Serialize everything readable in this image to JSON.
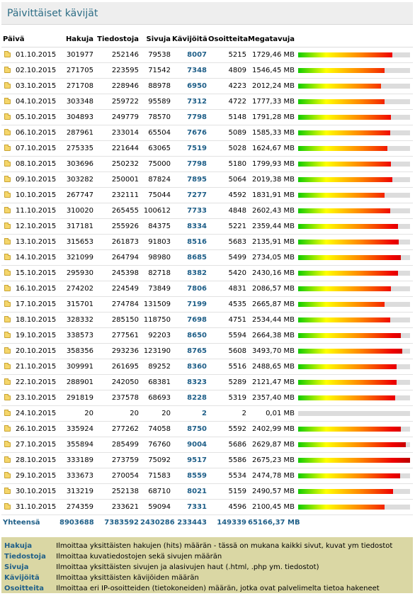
{
  "title": "Päivittäiset kävijät",
  "columns": [
    "Päivä",
    "Hakuja",
    "Tiedostoja",
    "Sivuja",
    "Kävijöitä",
    "Osoitteita",
    "Megatavuja"
  ],
  "bar_max_megatavuja": 3493.7,
  "rows": [
    {
      "date": "01.10.2015",
      "hakuja": "301977",
      "tiedostoja": "252146",
      "sivuja": "79538",
      "kavijoita": "8007",
      "osoitteita": "5215",
      "mb": "1729,46 MB",
      "fill": 0.84
    },
    {
      "date": "02.10.2015",
      "hakuja": "271705",
      "tiedostoja": "223595",
      "sivuja": "71542",
      "kavijoita": "7348",
      "osoitteita": "4809",
      "mb": "1546,45 MB",
      "fill": 0.77
    },
    {
      "date": "03.10.2015",
      "hakuja": "271708",
      "tiedostoja": "228946",
      "sivuja": "88978",
      "kavijoita": "6950",
      "osoitteita": "4223",
      "mb": "2012,24 MB",
      "fill": 0.74
    },
    {
      "date": "04.10.2015",
      "hakuja": "303348",
      "tiedostoja": "259722",
      "sivuja": "95589",
      "kavijoita": "7312",
      "osoitteita": "4722",
      "mb": "1777,33 MB",
      "fill": 0.77
    },
    {
      "date": "05.10.2015",
      "hakuja": "304893",
      "tiedostoja": "249779",
      "sivuja": "78570",
      "kavijoita": "7798",
      "osoitteita": "5148",
      "mb": "1791,28 MB",
      "fill": 0.83
    },
    {
      "date": "06.10.2015",
      "hakuja": "287961",
      "tiedostoja": "233014",
      "sivuja": "65504",
      "kavijoita": "7676",
      "osoitteita": "5089",
      "mb": "1585,33 MB",
      "fill": 0.82
    },
    {
      "date": "07.10.2015",
      "hakuja": "275335",
      "tiedostoja": "221644",
      "sivuja": "63065",
      "kavijoita": "7519",
      "osoitteita": "5028",
      "mb": "1624,67 MB",
      "fill": 0.8
    },
    {
      "date": "08.10.2015",
      "hakuja": "303696",
      "tiedostoja": "250232",
      "sivuja": "75000",
      "kavijoita": "7798",
      "osoitteita": "5180",
      "mb": "1799,93 MB",
      "fill": 0.83
    },
    {
      "date": "09.10.2015",
      "hakuja": "303282",
      "tiedostoja": "250001",
      "sivuja": "87824",
      "kavijoita": "7895",
      "osoitteita": "5064",
      "mb": "2019,38 MB",
      "fill": 0.84
    },
    {
      "date": "10.10.2015",
      "hakuja": "267747",
      "tiedostoja": "232111",
      "sivuja": "75044",
      "kavijoita": "7277",
      "osoitteita": "4592",
      "mb": "1831,91 MB",
      "fill": 0.77
    },
    {
      "date": "11.10.2015",
      "hakuja": "310020",
      "tiedostoja": "265455",
      "sivuja": "100612",
      "kavijoita": "7733",
      "osoitteita": "4848",
      "mb": "2602,43 MB",
      "fill": 0.82
    },
    {
      "date": "12.10.2015",
      "hakuja": "317181",
      "tiedostoja": "255926",
      "sivuja": "84375",
      "kavijoita": "8334",
      "osoitteita": "5221",
      "mb": "2359,44 MB",
      "fill": 0.89
    },
    {
      "date": "13.10.2015",
      "hakuja": "315653",
      "tiedostoja": "261873",
      "sivuja": "91803",
      "kavijoita": "8516",
      "osoitteita": "5683",
      "mb": "2135,91 MB",
      "fill": 0.9
    },
    {
      "date": "14.10.2015",
      "hakuja": "321099",
      "tiedostoja": "264794",
      "sivuja": "98980",
      "kavijoita": "8685",
      "osoitteita": "5499",
      "mb": "2734,05 MB",
      "fill": 0.92
    },
    {
      "date": "15.10.2015",
      "hakuja": "295930",
      "tiedostoja": "245398",
      "sivuja": "82718",
      "kavijoita": "8382",
      "osoitteita": "5420",
      "mb": "2430,16 MB",
      "fill": 0.89
    },
    {
      "date": "16.10.2015",
      "hakuja": "274202",
      "tiedostoja": "224549",
      "sivuja": "73849",
      "kavijoita": "7806",
      "osoitteita": "4831",
      "mb": "2086,57 MB",
      "fill": 0.83
    },
    {
      "date": "17.10.2015",
      "hakuja": "315701",
      "tiedostoja": "274784",
      "sivuja": "131509",
      "kavijoita": "7199",
      "osoitteita": "4535",
      "mb": "2665,87 MB",
      "fill": 0.77
    },
    {
      "date": "18.10.2015",
      "hakuja": "328332",
      "tiedostoja": "285150",
      "sivuja": "118750",
      "kavijoita": "7698",
      "osoitteita": "4751",
      "mb": "2534,44 MB",
      "fill": 0.82
    },
    {
      "date": "19.10.2015",
      "hakuja": "338573",
      "tiedostoja": "277561",
      "sivuja": "92203",
      "kavijoita": "8650",
      "osoitteita": "5594",
      "mb": "2664,38 MB",
      "fill": 0.92
    },
    {
      "date": "20.10.2015",
      "hakuja": "358356",
      "tiedostoja": "293236",
      "sivuja": "123190",
      "kavijoita": "8765",
      "osoitteita": "5608",
      "mb": "3493,70 MB",
      "fill": 0.93
    },
    {
      "date": "21.10.2015",
      "hakuja": "309991",
      "tiedostoja": "261695",
      "sivuja": "89252",
      "kavijoita": "8360",
      "osoitteita": "5516",
      "mb": "2488,65 MB",
      "fill": 0.88
    },
    {
      "date": "22.10.2015",
      "hakuja": "288901",
      "tiedostoja": "242050",
      "sivuja": "68381",
      "kavijoita": "8323",
      "osoitteita": "5289",
      "mb": "2121,47 MB",
      "fill": 0.88
    },
    {
      "date": "23.10.2015",
      "hakuja": "291819",
      "tiedostoja": "237578",
      "sivuja": "68693",
      "kavijoita": "8228",
      "osoitteita": "5319",
      "mb": "2357,40 MB",
      "fill": 0.87
    },
    {
      "date": "24.10.2015",
      "hakuja": "20",
      "tiedostoja": "20",
      "sivuja": "20",
      "kavijoita": "2",
      "osoitteita": "2",
      "mb": "0,01 MB",
      "fill": 0.0
    },
    {
      "date": "26.10.2015",
      "hakuja": "335924",
      "tiedostoja": "277262",
      "sivuja": "74058",
      "kavijoita": "8750",
      "osoitteita": "5592",
      "mb": "2402,99 MB",
      "fill": 0.92
    },
    {
      "date": "27.10.2015",
      "hakuja": "355894",
      "tiedostoja": "285499",
      "sivuja": "76760",
      "kavijoita": "9004",
      "osoitteita": "5686",
      "mb": "2629,87 MB",
      "fill": 0.96
    },
    {
      "date": "28.10.2015",
      "hakuja": "333189",
      "tiedostoja": "273759",
      "sivuja": "75092",
      "kavijoita": "9517",
      "osoitteita": "5586",
      "mb": "2675,23 MB",
      "fill": 1.0
    },
    {
      "date": "29.10.2015",
      "hakuja": "333673",
      "tiedostoja": "270054",
      "sivuja": "71583",
      "kavijoita": "8559",
      "osoitteita": "5534",
      "mb": "2474,78 MB",
      "fill": 0.91
    },
    {
      "date": "30.10.2015",
      "hakuja": "313219",
      "tiedostoja": "252138",
      "sivuja": "68710",
      "kavijoita": "8021",
      "osoitteita": "5159",
      "mb": "2490,57 MB",
      "fill": 0.85
    },
    {
      "date": "31.10.2015",
      "hakuja": "274359",
      "tiedostoja": "233621",
      "sivuja": "59094",
      "kavijoita": "7331",
      "osoitteita": "4596",
      "mb": "2100,45 MB",
      "fill": 0.77
    }
  ],
  "total": {
    "label": "Yhteensä",
    "hakuja": "8903688",
    "tiedostoja": "7383592",
    "sivuja": "2430286",
    "kavijoita": "233443",
    "osoitteita": "149339",
    "mb": "65166,37 MB"
  },
  "legend": [
    {
      "term": "Hakuja",
      "desc": "Ilmoittaa yksittäisten hakujen (hits) määrän - tässä on mukana kaikki sivut, kuvat ym tiedostot"
    },
    {
      "term": "Tiedostoja",
      "desc": "Ilmoittaa kuvatiedostojen sekä sivujen määrän"
    },
    {
      "term": "Sivuja",
      "desc": "Ilmoittaa yksittäisten sivujen ja alasivujen haut (.html, .php ym. tiedostot)"
    },
    {
      "term": "Kävijöitä",
      "desc": "Ilmoittaa yksittäisten kävijöiden määrän"
    },
    {
      "term": "Osoitteita",
      "desc": "Ilmoittaa eri IP-osoitteiden (tietokoneiden) määrän, jotka ovat palvelimelta tietoa hakeneet"
    }
  ],
  "colors": {
    "accent": "#1f5f88",
    "title_text": "#2e6e86",
    "legend_bg": "#dad7a4",
    "bar_track": "#dcdcdc"
  },
  "icons": {
    "row": "folder-icon"
  }
}
